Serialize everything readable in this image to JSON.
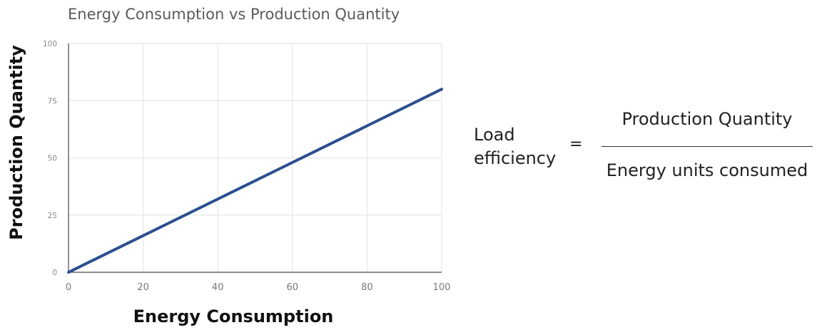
{
  "chart_data": {
    "type": "line",
    "title": "Energy Consumption vs Production Quantity",
    "xlabel": "Energy Consumption",
    "ylabel": "Production Quantity",
    "xlim": [
      0,
      100
    ],
    "ylim": [
      0,
      100
    ],
    "xticks": [
      0,
      20,
      40,
      60,
      80,
      100
    ],
    "yticks": [
      0,
      25,
      50,
      75,
      100
    ],
    "grid": true,
    "series": [
      {
        "x": [
          0,
          100
        ],
        "y": [
          0,
          80
        ],
        "color": "#2a4f8f"
      }
    ]
  },
  "formula": {
    "label": "Load efficiency",
    "equals": "=",
    "numerator": "Production Quantity",
    "denominator": "Energy units consumed"
  }
}
